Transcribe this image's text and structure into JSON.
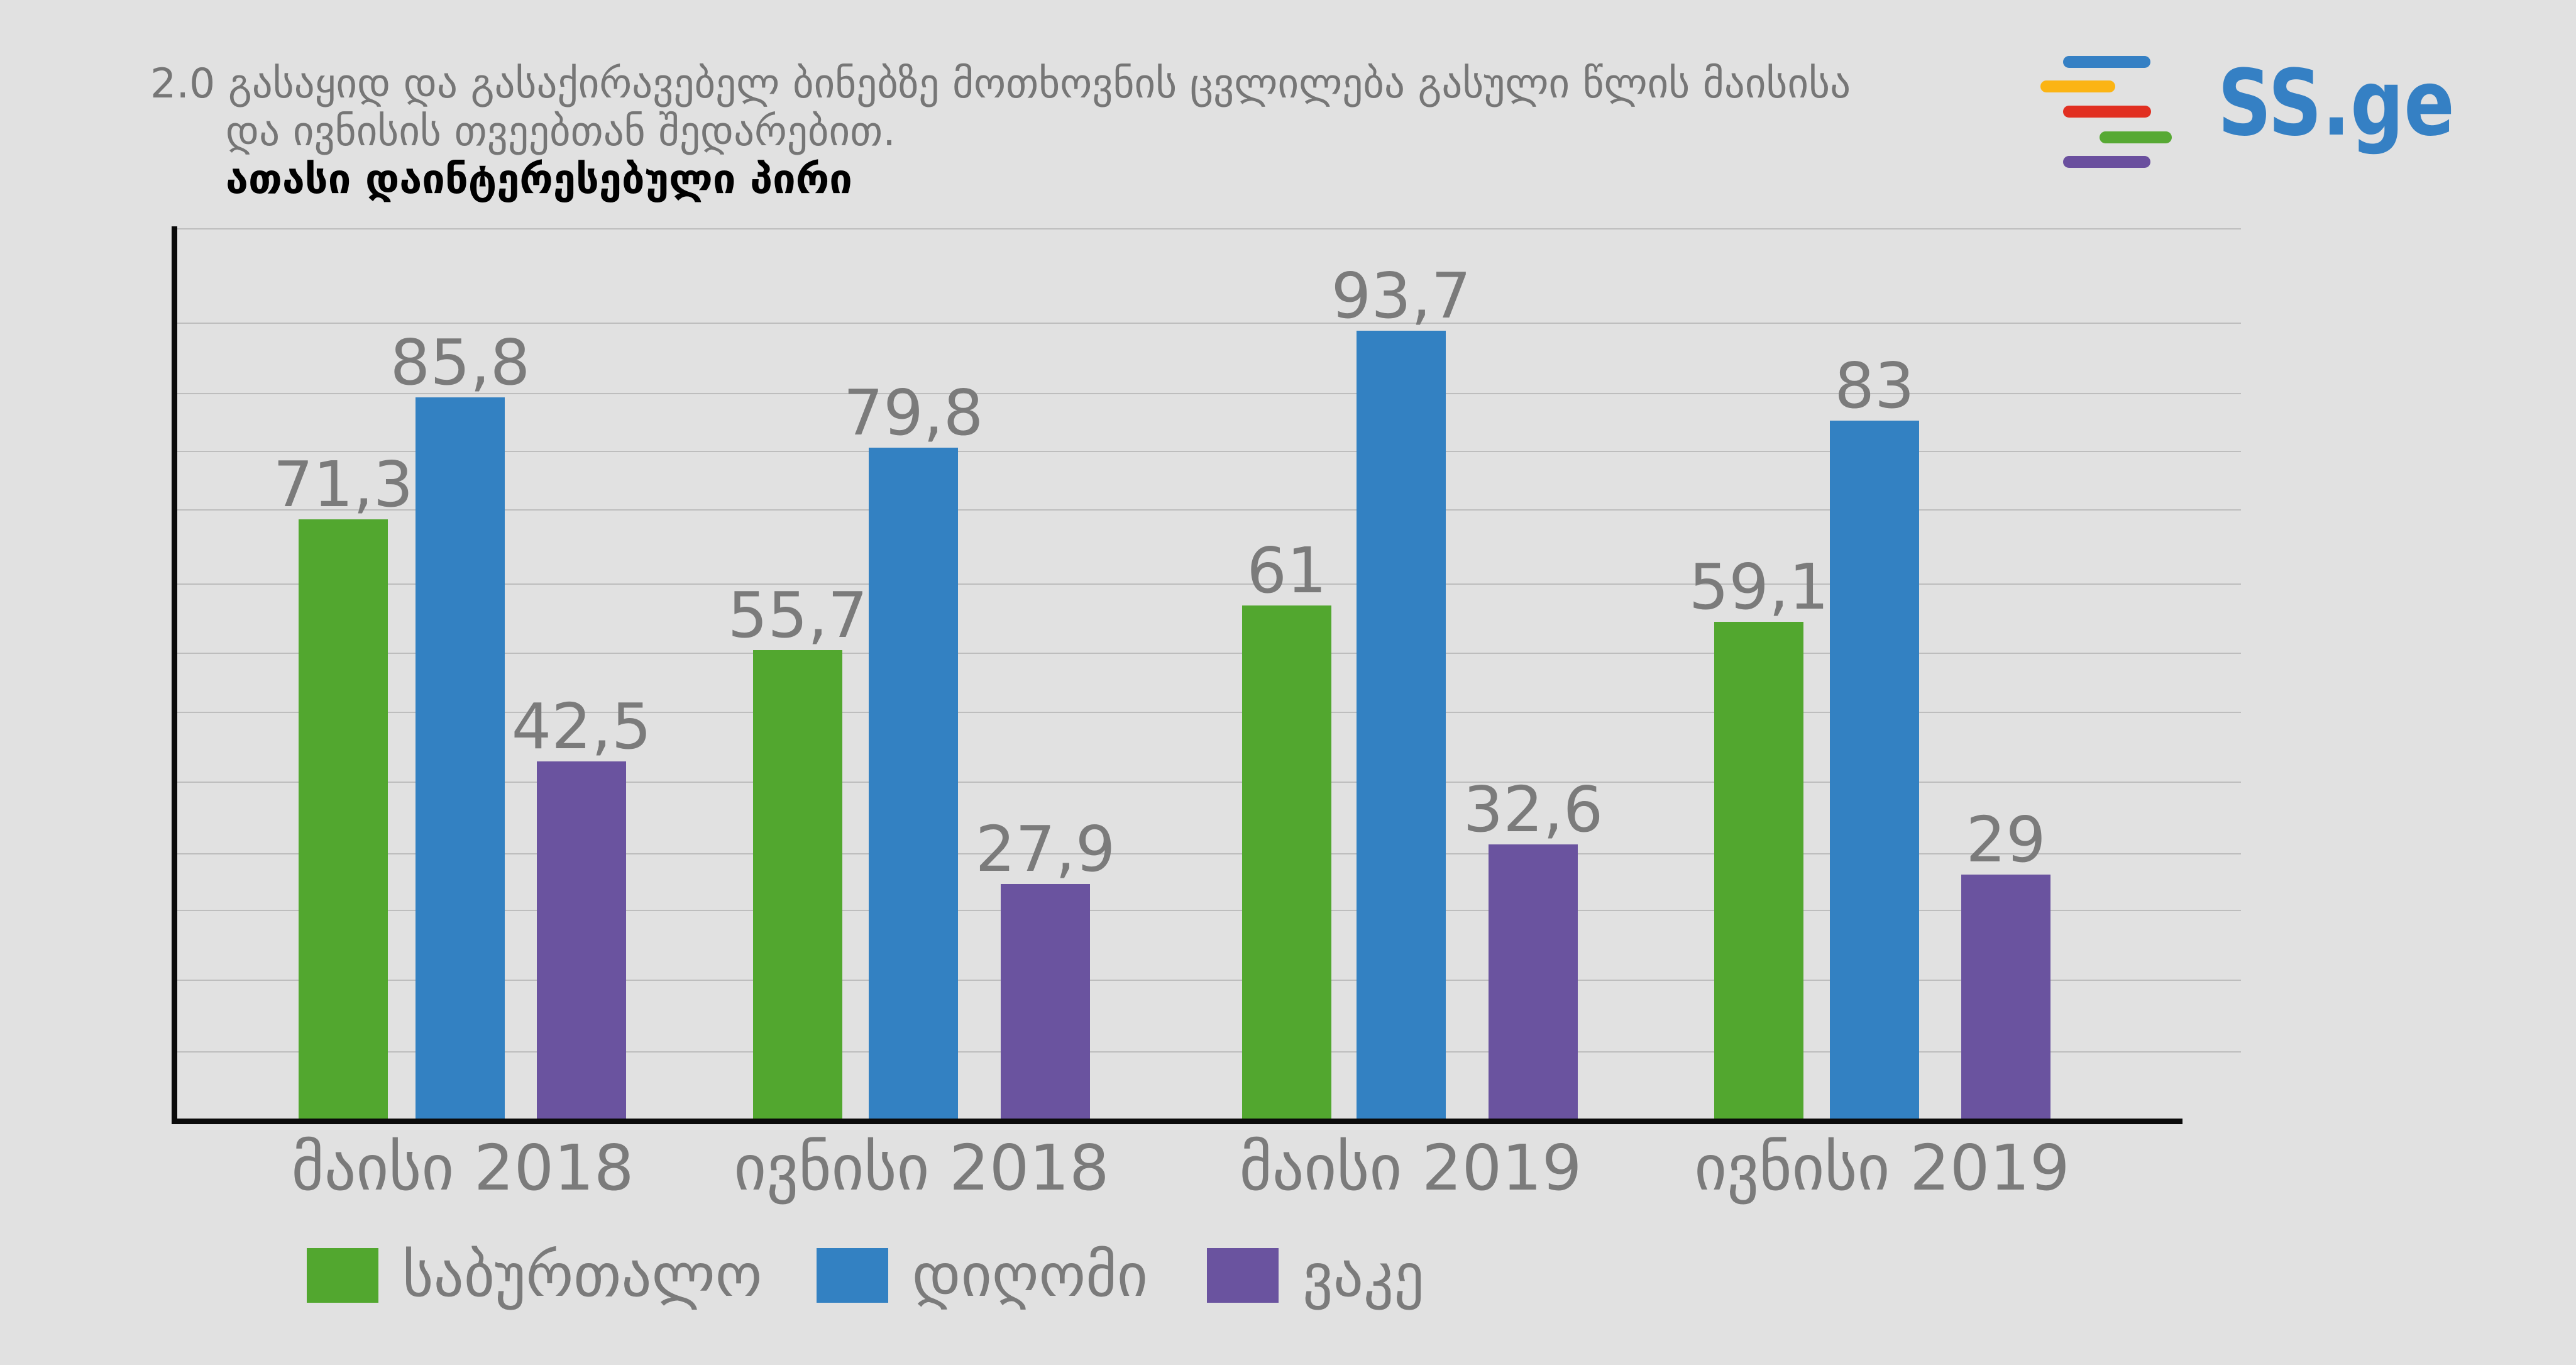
{
  "title": {
    "line1": "2.0 გასაყიდ და გასაქირავებელ ბინებზე მოთხოვნის ცვლილება გასული წლის მაისისა",
    "line2": "და ივნისის თვეებთან შედარებით.",
    "line3": "ათასი დაინტერესებული პირი"
  },
  "logo": {
    "text": "SS.ge",
    "text_color": "#3580c4",
    "bar_colors": [
      "#3580c4",
      "#fbb414",
      "#e12f21",
      "#57a934",
      "#6a4f9e"
    ]
  },
  "chart_data": {
    "type": "bar",
    "categories": [
      "მაისი 2018",
      "ივნისი 2018",
      "მაისი 2019",
      "ივნისი 2019"
    ],
    "series": [
      {
        "name": "საბურთალო",
        "color": "#52a72f",
        "values": [
          71.3,
          55.7,
          61,
          59.1
        ]
      },
      {
        "name": "დიღომი",
        "color": "#3381c2",
        "values": [
          85.8,
          79.8,
          93.7,
          83
        ]
      },
      {
        "name": "ვაკე",
        "color": "#6a539f",
        "values": [
          42.5,
          27.9,
          32.6,
          29
        ]
      }
    ],
    "value_label_format": "comma-decimal",
    "ylim": [
      0,
      106
    ],
    "grid": true,
    "legend_position": "bottom"
  },
  "colors": {
    "background": "#e1e1e1",
    "gridline": "#bdbdbd",
    "axis": "#0a0a0a",
    "text_gray": "#7b7b7b",
    "title_gray": "#767676"
  }
}
